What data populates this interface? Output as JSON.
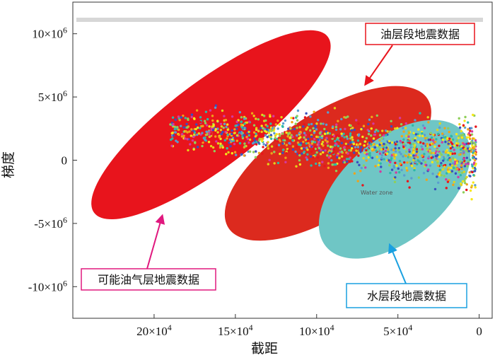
{
  "chart_data": {
    "type": "scatter",
    "xlabel": "截距",
    "ylabel": "梯度",
    "x_axis_reversed": true,
    "xlim": [
      250000,
      -8000
    ],
    "ylim": [
      -12500000,
      12500000
    ],
    "x_ticks": [
      {
        "value": 200000,
        "base": "20×10",
        "exp": "4"
      },
      {
        "value": 150000,
        "base": "15×10",
        "exp": "4"
      },
      {
        "value": 100000,
        "base": "10×10",
        "exp": "4"
      },
      {
        "value": 50000,
        "base": "5×10",
        "exp": "4"
      },
      {
        "value": 0,
        "base": "0",
        "exp": ""
      }
    ],
    "y_ticks": [
      {
        "value": 10000000,
        "base": "10×10",
        "exp": "6"
      },
      {
        "value": 5000000,
        "base": "5×10",
        "exp": "6"
      },
      {
        "value": 0,
        "base": "0",
        "exp": ""
      },
      {
        "value": -5000000,
        "base": "-5×10",
        "exp": "6"
      },
      {
        "value": -10000000,
        "base": "-10×10",
        "exp": "6"
      }
    ],
    "regions": [
      {
        "name": "可能油气层地震数据",
        "color": "#e8141c",
        "center": [
          165000,
          2800000
        ],
        "rx": 90000,
        "ry": 3400000,
        "rotation_deg": -37
      },
      {
        "name": "油层段地震数据",
        "color": "#dc2a1e",
        "center": [
          93000,
          -250000
        ],
        "rx": 73000,
        "ry": 4000000,
        "rotation_deg": -33
      },
      {
        "name": "水层段地震数据",
        "color": "#6fc6c5",
        "center": [
          52000,
          -2300000
        ],
        "rx": 55000,
        "ry": 4000000,
        "rotation_deg": -40
      }
    ],
    "annotations": [
      {
        "text": "油层段地震数据",
        "color": "#e8141c",
        "target": [
          70000,
          6000000
        ]
      },
      {
        "text": "可能油气层地震数据",
        "color": "#e0187e",
        "target": [
          195000,
          -4400000
        ]
      },
      {
        "text": "水层段地震数据",
        "color": "#1aa0e0",
        "target": [
          55000,
          -6700000
        ]
      }
    ],
    "inner_label": "Water zone",
    "point_colors": [
      "#f7e81a",
      "#e5d21b",
      "#5b9ccf",
      "#3a4fbf",
      "#e8141c",
      "#f0a21a",
      "#8fcf5a",
      "#d43aa0",
      "#2fb8a8"
    ],
    "point_cloud": {
      "x_range": [
        2000,
        190000
      ],
      "y_center": 1000000,
      "y_spread": 2500000,
      "count": 1400
    }
  }
}
